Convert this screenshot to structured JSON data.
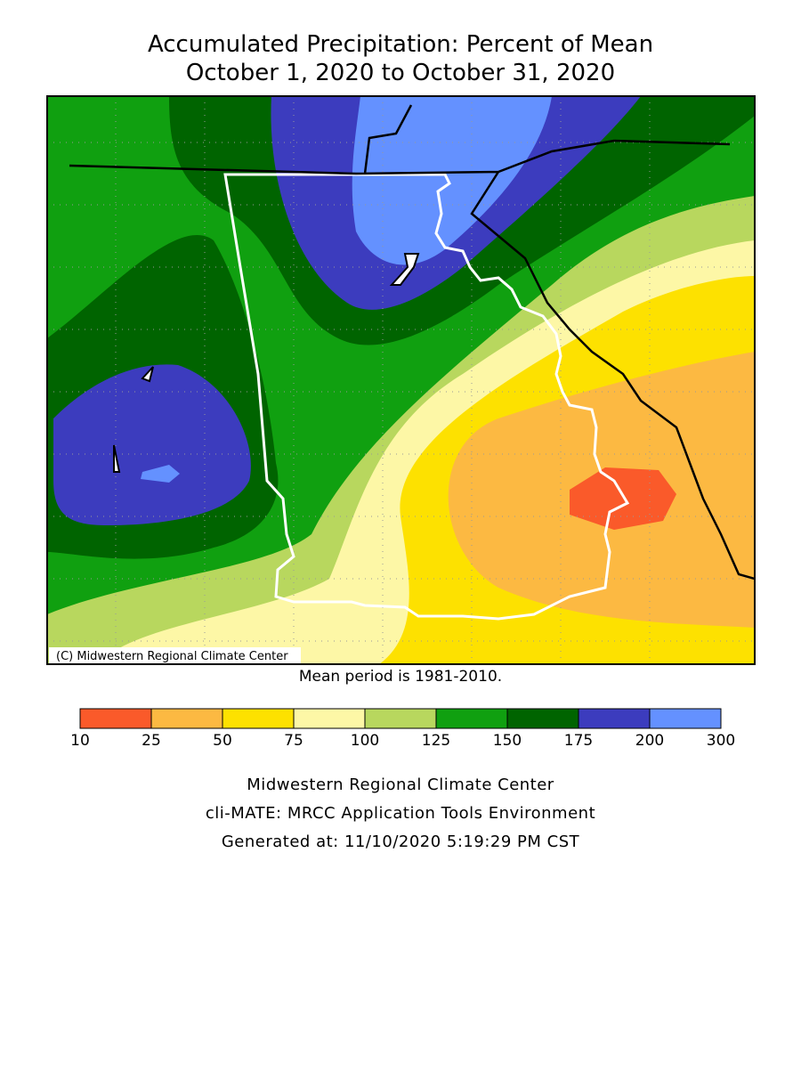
{
  "title": [
    "Accumulated Precipitation: Percent of Mean",
    "October 1, 2020 to October 31, 2020"
  ],
  "map": {
    "credit": "(C) Midwestern Regional Climate Center"
  },
  "mean_period": "Mean period is 1981-2010.",
  "legend": {
    "breaks": [
      10,
      25,
      50,
      75,
      100,
      125,
      150,
      175,
      200,
      300
    ],
    "colors": [
      "#fa5a2a",
      "#fcb942",
      "#fde100",
      "#fdf7a6",
      "#b8d75e",
      "#10a010",
      "#006400",
      "#3c3cbe",
      "#6491ff"
    ]
  },
  "footer": [
    "Midwestern Regional Climate Center",
    "cli-MATE: MRCC Application Tools Environment",
    "Generated at: 11/10/2020 5:19:29 PM CST"
  ]
}
